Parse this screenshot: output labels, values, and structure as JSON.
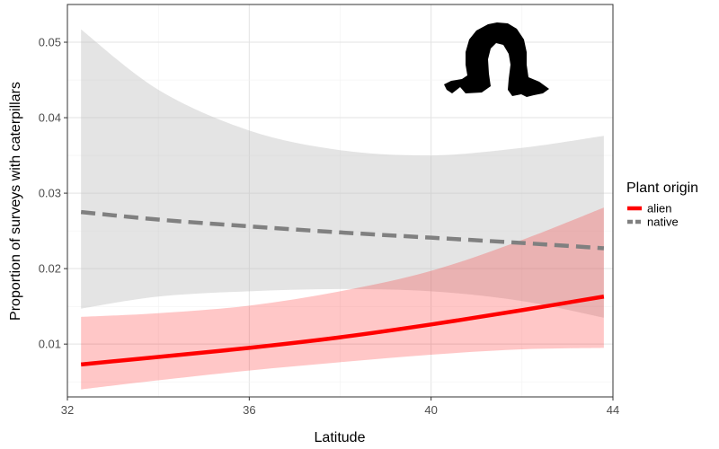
{
  "chart_data": {
    "type": "line",
    "title": "",
    "xlabel": "Latitude",
    "ylabel": "Proportion of surveys with caterpillars",
    "xlim": [
      32,
      44
    ],
    "ylim": [
      0.003,
      0.055
    ],
    "x_ticks": [
      32,
      36,
      40,
      44
    ],
    "y_ticks": [
      0.01,
      0.02,
      0.03,
      0.04,
      0.05
    ],
    "x_tick_labels": [
      "32",
      "36",
      "40",
      "44"
    ],
    "y_tick_labels": [
      "0.01",
      "0.02",
      "0.03",
      "0.04",
      "0.05"
    ],
    "grid": true,
    "legend": {
      "title": "Plant origin",
      "position": "right"
    },
    "series": [
      {
        "name": "native",
        "color": "#808080",
        "ribbon_color": "#bfbfbf",
        "linestyle": "dashed",
        "x": [
          32.3,
          34,
          36,
          38,
          40,
          42,
          43.8
        ],
        "y": [
          0.0275,
          0.0265,
          0.0256,
          0.0248,
          0.0241,
          0.0234,
          0.0227
        ],
        "lower": [
          0.0147,
          0.0163,
          0.017,
          0.0173,
          0.017,
          0.0157,
          0.0135
        ],
        "upper": [
          0.0517,
          0.0437,
          0.0383,
          0.0357,
          0.035,
          0.036,
          0.0376
        ]
      },
      {
        "name": "alien",
        "color": "#ff0000",
        "ribbon_color": "#ff0000",
        "linestyle": "solid",
        "x": [
          32.3,
          34,
          36,
          38,
          40,
          42,
          43.8
        ],
        "y": [
          0.0073,
          0.0083,
          0.0095,
          0.0109,
          0.0126,
          0.0145,
          0.0163
        ],
        "lower": [
          0.004,
          0.0052,
          0.0065,
          0.0076,
          0.0086,
          0.0093,
          0.0095
        ],
        "upper": [
          0.0136,
          0.0141,
          0.0151,
          0.017,
          0.0197,
          0.0238,
          0.0281
        ]
      }
    ]
  },
  "icon": {
    "name": "caterpillar-silhouette-icon"
  }
}
